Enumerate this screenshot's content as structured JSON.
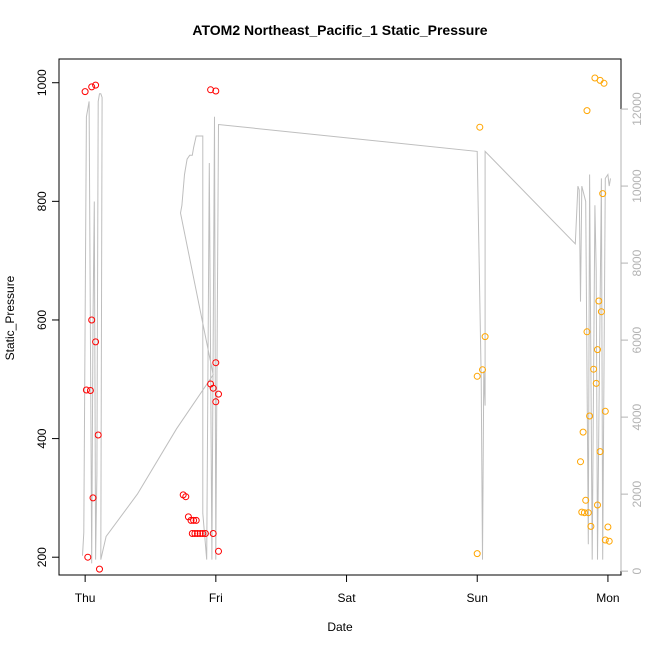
{
  "chart_data": {
    "type": "scatter",
    "title": "ATOM2 Northeast_Pacific_1 Static_Pressure",
    "xlabel": "Date",
    "ylabel": "Static_Pressure",
    "x_ticks": [
      "Thu",
      "Fri",
      "Sat",
      "Sun",
      "Mon"
    ],
    "x_lim": [
      -0.2,
      4.1
    ],
    "y_lim": [
      170,
      1040
    ],
    "y_ticks": [
      200,
      400,
      600,
      800,
      1000
    ],
    "y2_lim": [
      -100,
      13300
    ],
    "y2_ticks": [
      0,
      2000,
      4000,
      6000,
      8000,
      10000,
      12000
    ],
    "grid": false,
    "colors": {
      "red": "#ff0000",
      "orange": "#ffa500",
      "line": "#bebebe",
      "axis": "#000000",
      "right_axis": "#b3b3b3"
    },
    "series": [
      {
        "color": "red",
        "points": [
          {
            "x": 0.0,
            "y": 985
          },
          {
            "x": 0.05,
            "y": 993
          },
          {
            "x": 0.08,
            "y": 996
          },
          {
            "x": 0.01,
            "y": 482
          },
          {
            "x": 0.04,
            "y": 481
          },
          {
            "x": 0.05,
            "y": 600
          },
          {
            "x": 0.08,
            "y": 563
          },
          {
            "x": 0.1,
            "y": 406
          },
          {
            "x": 0.06,
            "y": 300
          },
          {
            "x": 0.02,
            "y": 200
          },
          {
            "x": 0.11,
            "y": 180
          },
          {
            "x": 0.96,
            "y": 988
          },
          {
            "x": 1.0,
            "y": 986
          },
          {
            "x": 0.96,
            "y": 492
          },
          {
            "x": 0.98,
            "y": 485
          },
          {
            "x": 1.02,
            "y": 475
          },
          {
            "x": 1.0,
            "y": 528
          },
          {
            "x": 1.0,
            "y": 462
          },
          {
            "x": 0.75,
            "y": 305
          },
          {
            "x": 0.77,
            "y": 302
          },
          {
            "x": 0.79,
            "y": 268
          },
          {
            "x": 0.81,
            "y": 262
          },
          {
            "x": 0.83,
            "y": 262
          },
          {
            "x": 0.85,
            "y": 262
          },
          {
            "x": 0.82,
            "y": 240
          },
          {
            "x": 0.84,
            "y": 240
          },
          {
            "x": 0.86,
            "y": 240
          },
          {
            "x": 0.88,
            "y": 240
          },
          {
            "x": 0.9,
            "y": 240
          },
          {
            "x": 0.92,
            "y": 240
          },
          {
            "x": 0.98,
            "y": 240
          },
          {
            "x": 1.02,
            "y": 210
          }
        ]
      },
      {
        "color": "orange",
        "points": [
          {
            "x": 3.02,
            "y": 925
          },
          {
            "x": 3.0,
            "y": 505
          },
          {
            "x": 3.04,
            "y": 516
          },
          {
            "x": 3.06,
            "y": 572
          },
          {
            "x": 3.0,
            "y": 206
          },
          {
            "x": 3.9,
            "y": 1008
          },
          {
            "x": 3.94,
            "y": 1004
          },
          {
            "x": 3.97,
            "y": 999
          },
          {
            "x": 3.84,
            "y": 953
          },
          {
            "x": 3.96,
            "y": 813
          },
          {
            "x": 3.93,
            "y": 632
          },
          {
            "x": 3.95,
            "y": 614
          },
          {
            "x": 3.84,
            "y": 580
          },
          {
            "x": 3.92,
            "y": 550
          },
          {
            "x": 3.89,
            "y": 517
          },
          {
            "x": 3.91,
            "y": 493
          },
          {
            "x": 3.98,
            "y": 446
          },
          {
            "x": 3.86,
            "y": 438
          },
          {
            "x": 3.81,
            "y": 411
          },
          {
            "x": 3.94,
            "y": 378
          },
          {
            "x": 3.79,
            "y": 361
          },
          {
            "x": 3.83,
            "y": 296
          },
          {
            "x": 3.92,
            "y": 288
          },
          {
            "x": 3.8,
            "y": 276
          },
          {
            "x": 3.82,
            "y": 275
          },
          {
            "x": 3.85,
            "y": 275
          },
          {
            "x": 3.87,
            "y": 252
          },
          {
            "x": 4.0,
            "y": 251
          },
          {
            "x": 3.98,
            "y": 229
          },
          {
            "x": 4.01,
            "y": 227
          }
        ]
      }
    ],
    "line": [
      [
        -0.02,
        400
      ],
      [
        -0.01,
        1000
      ],
      [
        0.01,
        11800
      ],
      [
        0.03,
        12200
      ],
      [
        0.05,
        200
      ],
      [
        0.06,
        6500
      ],
      [
        0.07,
        9600
      ],
      [
        0.08,
        300
      ],
      [
        0.09,
        2500
      ],
      [
        0.1,
        12200
      ],
      [
        0.11,
        12400
      ],
      [
        0.12,
        12400
      ],
      [
        0.13,
        12300
      ],
      [
        0.12,
        300
      ],
      [
        0.16,
        900
      ],
      [
        0.4,
        2000
      ],
      [
        0.7,
        3700
      ],
      [
        0.98,
        5100
      ],
      [
        0.73,
        9300
      ],
      [
        0.74,
        9500
      ],
      [
        0.76,
        10300
      ],
      [
        0.78,
        10700
      ],
      [
        0.8,
        10800
      ],
      [
        0.82,
        10800
      ],
      [
        0.83,
        11000
      ],
      [
        0.85,
        11300
      ],
      [
        0.88,
        11300
      ],
      [
        0.9,
        11300
      ],
      [
        0.9,
        1500
      ],
      [
        0.93,
        300
      ],
      [
        0.95,
        10600
      ],
      [
        0.97,
        300
      ],
      [
        0.99,
        11800
      ],
      [
        1.0,
        300
      ],
      [
        1.02,
        11600
      ],
      [
        1.02,
        11600
      ],
      [
        3.0,
        10900
      ],
      [
        3.0,
        10900
      ],
      [
        3.03,
        5000
      ],
      [
        3.04,
        300
      ],
      [
        3.05,
        5200
      ],
      [
        3.06,
        4300
      ],
      [
        3.06,
        10900
      ],
      [
        3.75,
        8500
      ],
      [
        3.75,
        8500
      ],
      [
        3.77,
        10000
      ],
      [
        3.78,
        9900
      ],
      [
        3.79,
        7000
      ],
      [
        3.8,
        10000
      ],
      [
        3.83,
        9600
      ],
      [
        3.85,
        700
      ],
      [
        3.86,
        10300
      ],
      [
        3.88,
        300
      ],
      [
        3.9,
        9500
      ],
      [
        3.91,
        7800
      ],
      [
        3.92,
        300
      ],
      [
        3.93,
        3700
      ],
      [
        3.95,
        10200
      ],
      [
        3.96,
        300
      ],
      [
        3.98,
        10200
      ],
      [
        4.0,
        10300
      ],
      [
        4.01,
        10000
      ],
      [
        4.02,
        10200
      ]
    ]
  }
}
